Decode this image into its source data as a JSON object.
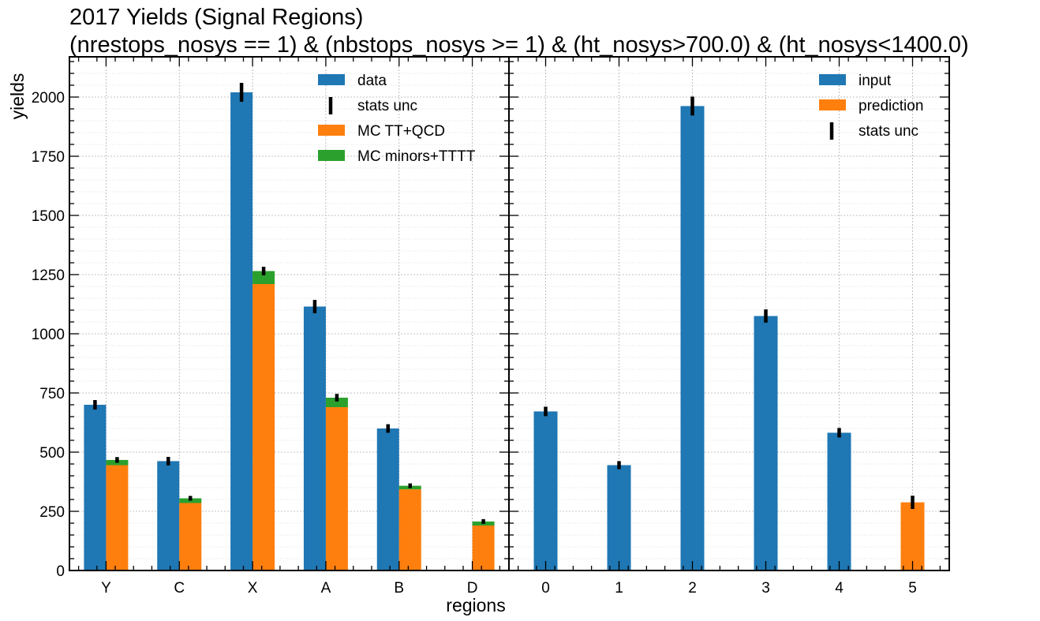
{
  "chart_data": [
    {
      "type": "bar",
      "panel": "left",
      "title": "2017 Yields (Signal Regions)",
      "subtitle": "(nrestops_nosys == 1) & (nbstops_nosys >= 1) & (ht_nosys>700.0) & (ht_nosys<1400.0)",
      "xlabel": "regions",
      "ylabel": "yields",
      "ylim": [
        0,
        2170
      ],
      "yticks": [
        "0",
        "250",
        "500",
        "750",
        "1000",
        "1250",
        "1500",
        "1750",
        "2000"
      ],
      "categories": [
        "Y",
        "C",
        "X",
        "A",
        "B",
        "D"
      ],
      "grid": true,
      "legend_position": "top-right",
      "legend": [
        "data",
        "stats unc",
        "MC TT+QCD",
        "MC minors+TTTT"
      ],
      "series": [
        {
          "name": "data",
          "values": [
            700,
            462,
            2020,
            1115,
            600,
            null
          ],
          "color": "#1f77b4",
          "errors": [
            20,
            18,
            40,
            28,
            18,
            null
          ]
        },
        {
          "name": "MC TT+QCD",
          "values": [
            445,
            285,
            1210,
            690,
            343,
            190
          ],
          "color": "#ff7f0e"
        },
        {
          "name": "MC minors+TTTT",
          "values": [
            22,
            20,
            55,
            40,
            15,
            17
          ],
          "color": "#2ca02c",
          "stacked_on": "MC TT+QCD",
          "errors": [
            12,
            10,
            18,
            16,
            10,
            10
          ]
        }
      ]
    },
    {
      "type": "bar",
      "panel": "right",
      "ylim": [
        0,
        2170
      ],
      "categories": [
        "0",
        "1",
        "2",
        "3",
        "4",
        "5"
      ],
      "grid": true,
      "legend_position": "top-right",
      "legend": [
        "input",
        "prediction",
        "stats unc"
      ],
      "series": [
        {
          "name": "input",
          "values": [
            672,
            445,
            1962,
            1075,
            582,
            null
          ],
          "color": "#1f77b4",
          "errors": [
            20,
            17,
            40,
            28,
            20,
            null
          ]
        },
        {
          "name": "prediction",
          "values": [
            null,
            null,
            null,
            null,
            null,
            288
          ],
          "color": "#ff7f0e",
          "errors": [
            null,
            null,
            null,
            null,
            null,
            28
          ]
        }
      ]
    }
  ],
  "colors": {
    "blue": "#1f77b4",
    "orange": "#ff7f0e",
    "green": "#2ca02c",
    "error_bar": "#000000"
  }
}
